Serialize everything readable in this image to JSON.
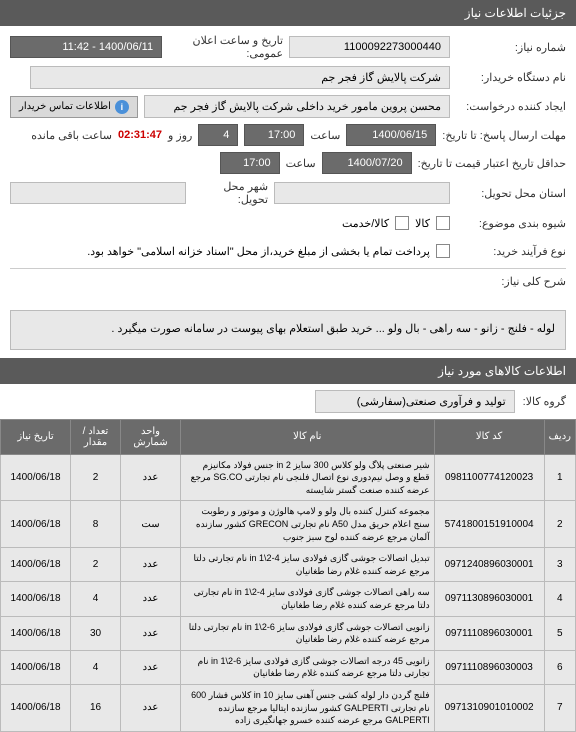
{
  "header": {
    "title": "جزئیات اطلاعات نیاز"
  },
  "form": {
    "need_no_label": "شماره نیاز:",
    "need_no": "1100092273000440",
    "announce_label": "تاریخ و ساعت اعلان عمومی:",
    "announce_value": "1400/06/11 - 11:42",
    "buyer_label": "نام دستگاه خریدار:",
    "buyer_value": "شرکت پالایش گاز فجر جم",
    "requester_label": "ایجاد کننده درخواست:",
    "requester_value": "محسن پروین مامور خرید داخلی شرکت پالایش گاز فجر جم",
    "contact_btn": "اطلاعات تماس خریدار",
    "deadline_label": "مهلت ارسال پاسخ: تا تاریخ:",
    "deadline_date": "1400/06/15",
    "time_label": "ساعت",
    "deadline_time": "17:00",
    "day_label": "روز و",
    "days_left": "4",
    "countdown": "02:31:47",
    "remaining_label": "ساعت باقی مانده",
    "validity_label": "حداقل تاریخ اعتبار قیمت تا تاریخ:",
    "validity_date": "1400/07/20",
    "validity_time": "17:00",
    "delivery_state_label": "استان محل تحویل:",
    "delivery_city_label": "شهر محل تحویل:",
    "delivery_method_label": "شیوه بندی موضوع:",
    "opt_goods": "کالا",
    "opt_service": "کالا/خدمت",
    "buy_process_label": "نوع فرآیند خرید:",
    "payment_note": "پرداخت تمام یا بخشی از مبلغ خرید،از محل \"اسناد خزانه اسلامی\" خواهد بود."
  },
  "desc": {
    "label": "شرح کلی نیاز:",
    "text": "لوله - فلنج - زانو - سه راهی - بال ولو ... خرید طبق استعلام بهای پیوست در سامانه صورت میگیرد ."
  },
  "items_header": "اطلاعات کالاهای مورد نیاز",
  "group": {
    "label": "گروه کالا:",
    "value": "تولید و فرآوری صنعتی(سفارشی)"
  },
  "table": {
    "cols": {
      "idx": "ردیف",
      "code": "کد کالا",
      "name": "نام کالا",
      "unit": "واحد شمارش",
      "qty": "تعداد / مقدار",
      "date": "تاریخ نیاز"
    },
    "rows": [
      {
        "idx": "1",
        "code": "0981100774120023",
        "name": "شیر صنعتی پلاگ ولو کلاس 300 سایز in 2 جنس فولاد مکانیزم قطع و وصل نیم‌دوری نوع اتصال فلنجی نام تجارتی SG.CO مرجع عرضه کننده صنعت گستر شایسته",
        "unit": "عدد",
        "qty": "2",
        "date": "1400/06/18"
      },
      {
        "idx": "2",
        "code": "5741800151910004",
        "name": "مجموعه کنترل کننده بال ولو و لامپ هالوژن و موتور و رطوبت سنج اعلام حریق مدل A50 نام تجارتی GRECON کشور سازنده آلمان مرجع عرضه کننده لوح سبز جنوب",
        "unit": "ست",
        "qty": "8",
        "date": "1400/06/18"
      },
      {
        "idx": "3",
        "code": "0971240896030001",
        "name": "تبدیل اتصالات جوشی گازی فولادی سایز 4-2\\1 in نام تجارتی دلتا مرجع عرضه کننده غلام رضا طغانیان",
        "unit": "عدد",
        "qty": "2",
        "date": "1400/06/18"
      },
      {
        "idx": "4",
        "code": "0971130896030001",
        "name": "سه راهی اتصالات جوشی گازی فولادی سایز 4-2\\1 in نام تجارتی دلتا مرجع عرضه کننده غلام رضا طغانیان",
        "unit": "عدد",
        "qty": "4",
        "date": "1400/06/18"
      },
      {
        "idx": "5",
        "code": "0971110896030001",
        "name": "زانویی اتصالات جوشی گازی فولادی سایز 6-2\\1 in نام تجارتی دلتا مرجع عرضه کننده غلام رضا طغانیان",
        "unit": "عدد",
        "qty": "30",
        "date": "1400/06/18"
      },
      {
        "idx": "6",
        "code": "0971110896030003",
        "name": "زانویی 45 درجه اتصالات جوشی گازی فولادی سایز 6-2\\1 in نام تجارتی دلتا مرجع عرضه کننده غلام رضا طغانیان",
        "unit": "عدد",
        "qty": "4",
        "date": "1400/06/18"
      },
      {
        "idx": "7",
        "code": "0971310901010002",
        "name": "فلنج گردن دار لوله کشی جنس آهنی سایز 10 in کلاس فشار 600 نام تجارتی GALPERTI کشور سازنده ایتالیا مرجع سازنده GALPERTI مرجع عرضه کننده خسرو جهانگیری زاده",
        "unit": "عدد",
        "qty": "16",
        "date": "1400/06/18"
      }
    ]
  }
}
